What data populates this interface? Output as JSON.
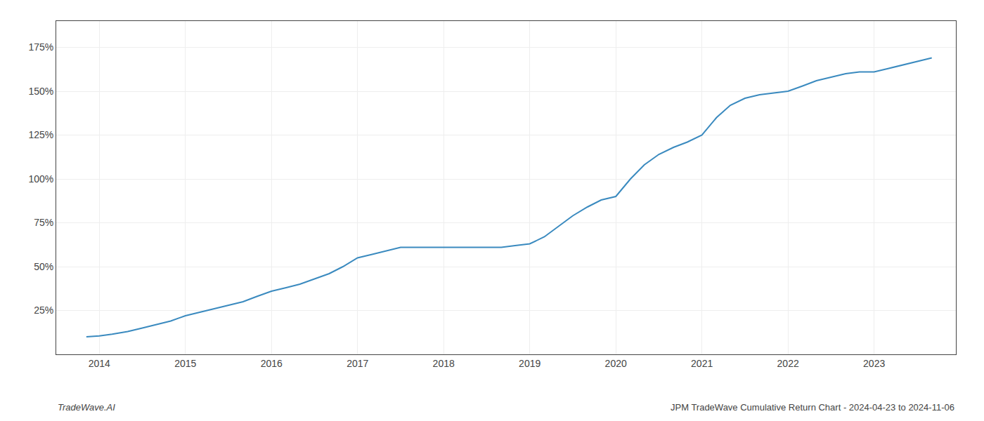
{
  "chart_data": {
    "type": "line",
    "x": [
      2013.85,
      2014.0,
      2014.15,
      2014.33,
      2014.5,
      2014.67,
      2014.83,
      2015.0,
      2015.17,
      2015.33,
      2015.5,
      2015.67,
      2015.83,
      2016.0,
      2016.17,
      2016.33,
      2016.5,
      2016.67,
      2016.83,
      2017.0,
      2017.17,
      2017.33,
      2017.5,
      2017.67,
      2017.83,
      2018.0,
      2018.17,
      2018.33,
      2018.5,
      2018.67,
      2018.83,
      2019.0,
      2019.17,
      2019.33,
      2019.5,
      2019.67,
      2019.83,
      2020.0,
      2020.17,
      2020.33,
      2020.5,
      2020.67,
      2020.83,
      2021.0,
      2021.17,
      2021.33,
      2021.5,
      2021.67,
      2021.83,
      2022.0,
      2022.17,
      2022.33,
      2022.5,
      2022.67,
      2022.83,
      2023.0,
      2023.17,
      2023.33,
      2023.5,
      2023.67
    ],
    "values": [
      10,
      10.5,
      11.5,
      13,
      15,
      17,
      19,
      22,
      24,
      26,
      28,
      30,
      33,
      36,
      38,
      40,
      43,
      46,
      50,
      55,
      57,
      59,
      61,
      61,
      61,
      61,
      61,
      61,
      61,
      61,
      62,
      63,
      67,
      73,
      79,
      84,
      88,
      90,
      100,
      108,
      114,
      118,
      121,
      125,
      135,
      142,
      146,
      148,
      149,
      150,
      153,
      156,
      158,
      160,
      161,
      161,
      163,
      165,
      167,
      169
    ],
    "color": "#3a8abf",
    "xlim": [
      2013.5,
      2023.95
    ],
    "xticks": [
      2014,
      2015,
      2016,
      2017,
      2018,
      2019,
      2020,
      2021,
      2022,
      2023
    ],
    "ylim": [
      0,
      190
    ],
    "yticks": [
      {
        "value": 25,
        "label": "25%"
      },
      {
        "value": 50,
        "label": "50%"
      },
      {
        "value": 75,
        "label": "75%"
      },
      {
        "value": 100,
        "label": "100%"
      },
      {
        "value": 125,
        "label": "125%"
      },
      {
        "value": 150,
        "label": "150%"
      },
      {
        "value": 175,
        "label": "175%"
      }
    ],
    "grid": true,
    "annotations": [
      "TradeWave.AI",
      "JPM TradeWave Cumulative Return Chart - 2024-04-23 to 2024-11-06"
    ]
  }
}
